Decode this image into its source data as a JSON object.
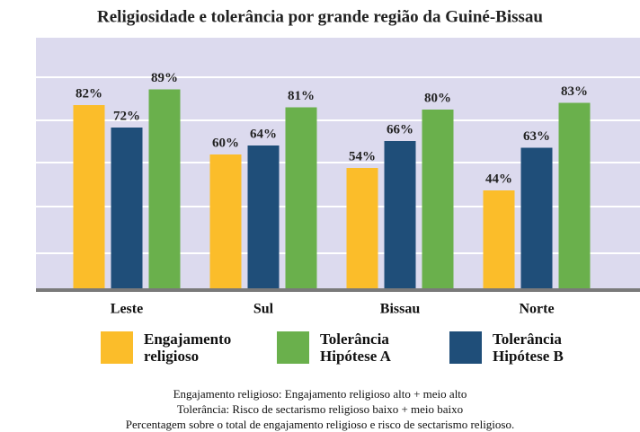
{
  "chart_data": {
    "type": "bar",
    "title": "Religiosidade e tolerância por grande região da Guiné-Bissau",
    "categories": [
      "Leste",
      "Sul",
      "Bissau",
      "Norte"
    ],
    "series": [
      {
        "name": "Engajamento religioso",
        "color": "#fbbd2a",
        "values": [
          82,
          60,
          54,
          44
        ],
        "value_labels": [
          "82%",
          "60%",
          "54%",
          "44%"
        ]
      },
      {
        "name": "Tolerância Hipótese B",
        "color": "#1f4e79",
        "values": [
          72,
          64,
          66,
          63
        ],
        "value_labels": [
          "72%",
          "64%",
          "66%",
          "63%"
        ]
      },
      {
        "name": "Tolerância Hipótese A",
        "color": "#6ab04c",
        "values": [
          89,
          81,
          80,
          83
        ],
        "value_labels": [
          "89%",
          "81%",
          "80%",
          "83%"
        ]
      }
    ],
    "ylim": [
      0,
      112
    ],
    "notes": [
      "Engajamento religioso: Engajamento religioso alto + meio alto",
      "Tolerância: Risco de sectarismo religioso baixo + meio baixo",
      "Percentagem sobre o total de engajamento religioso e risco de sectarismo religioso."
    ]
  }
}
